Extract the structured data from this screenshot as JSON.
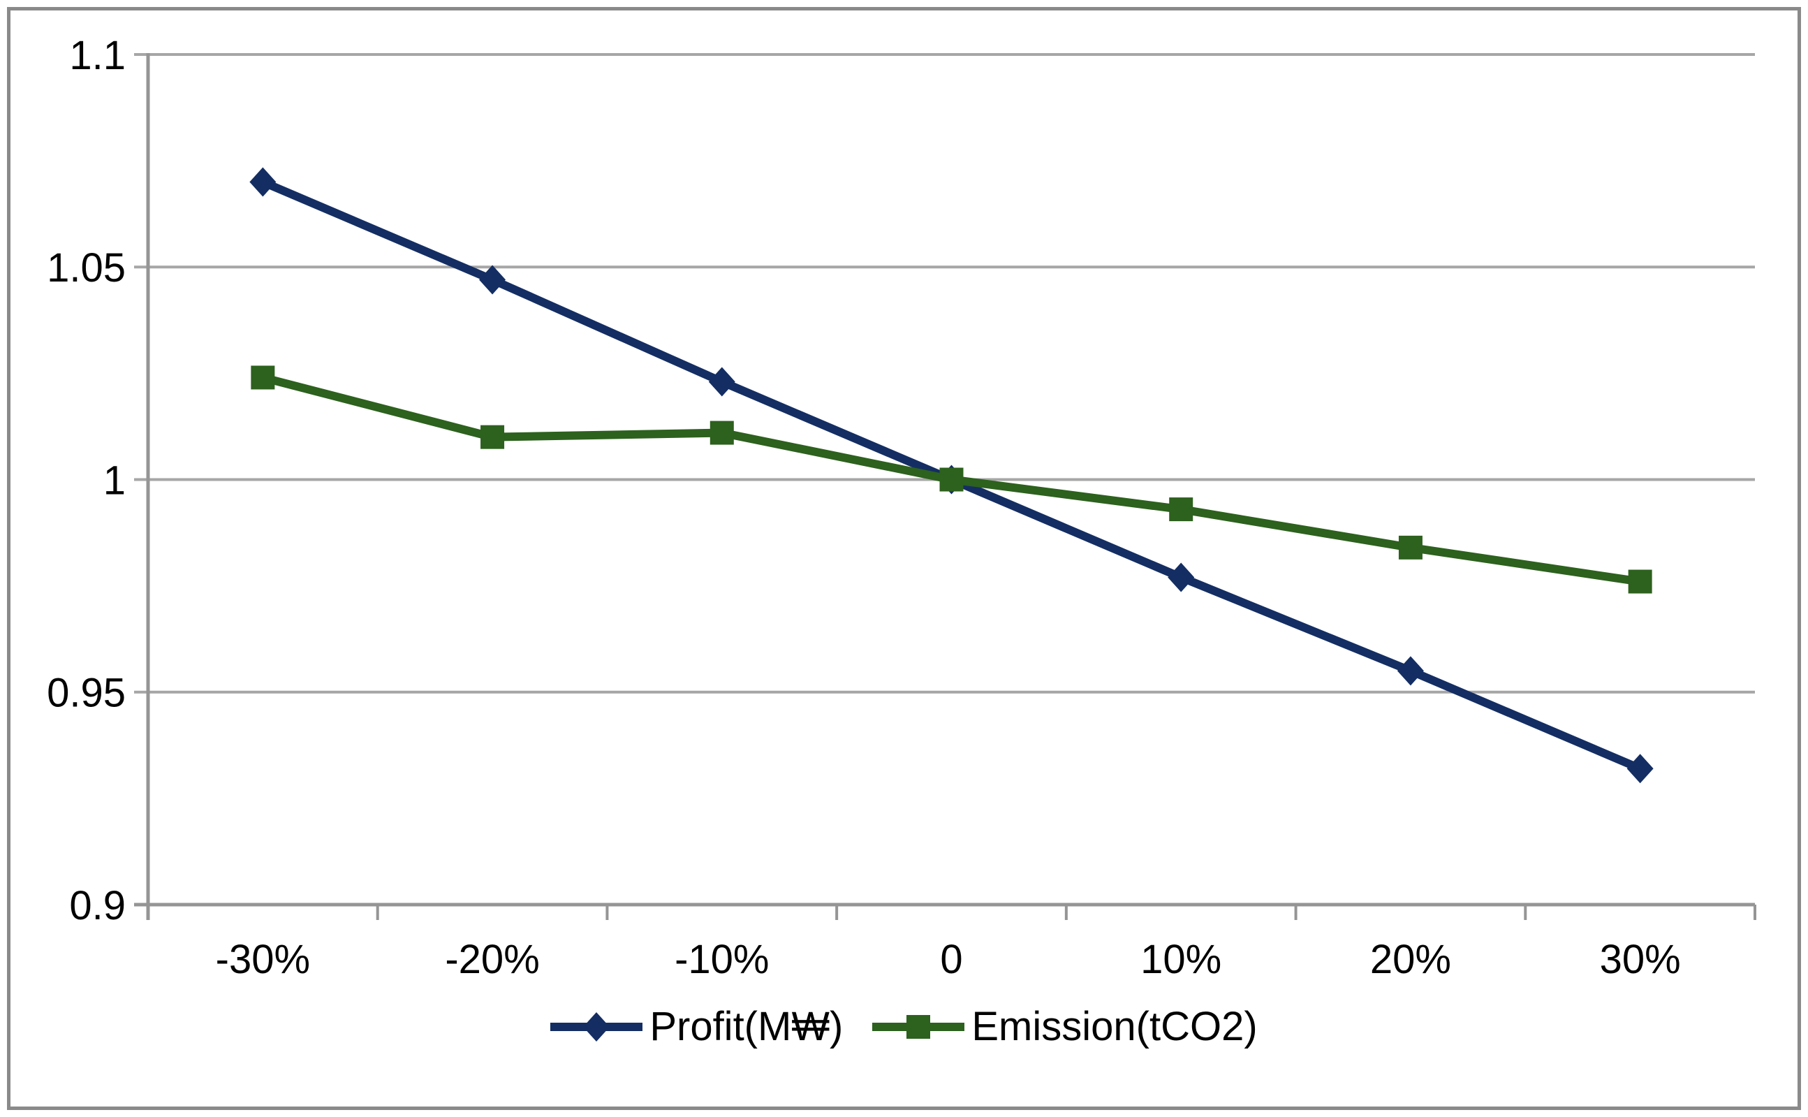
{
  "chart_data": {
    "type": "line",
    "title": "",
    "xlabel": "",
    "ylabel": "",
    "categories": [
      "-30%",
      "-20%",
      "-10%",
      "0",
      "10%",
      "20%",
      "30%"
    ],
    "series": [
      {
        "name": "Profit(M₩)",
        "marker": "diamond",
        "color": "#142E63",
        "values": [
          1.07,
          1.047,
          1.023,
          1.0,
          0.977,
          0.955,
          0.932
        ]
      },
      {
        "name": "Emission(tCO2)",
        "marker": "square",
        "color": "#2D611E",
        "values": [
          1.024,
          1.01,
          1.011,
          1.0,
          0.993,
          0.984,
          0.976
        ]
      }
    ],
    "y_axis": {
      "min": 0.9,
      "max": 1.1,
      "ticks": [
        {
          "value": 1.1,
          "label": "1.1"
        },
        {
          "value": 1.05,
          "label": "1.05"
        },
        {
          "value": 1.0,
          "label": "1"
        },
        {
          "value": 0.95,
          "label": "0.95"
        },
        {
          "value": 0.9,
          "label": "0.9"
        }
      ]
    },
    "grid": true,
    "legend_position": "bottom"
  },
  "style": {
    "background": "#FFFFFF",
    "border_color": "#8A8A8A",
    "grid_color": "#A6A6A6",
    "axis_color": "#959595",
    "text_color": "#000000"
  }
}
